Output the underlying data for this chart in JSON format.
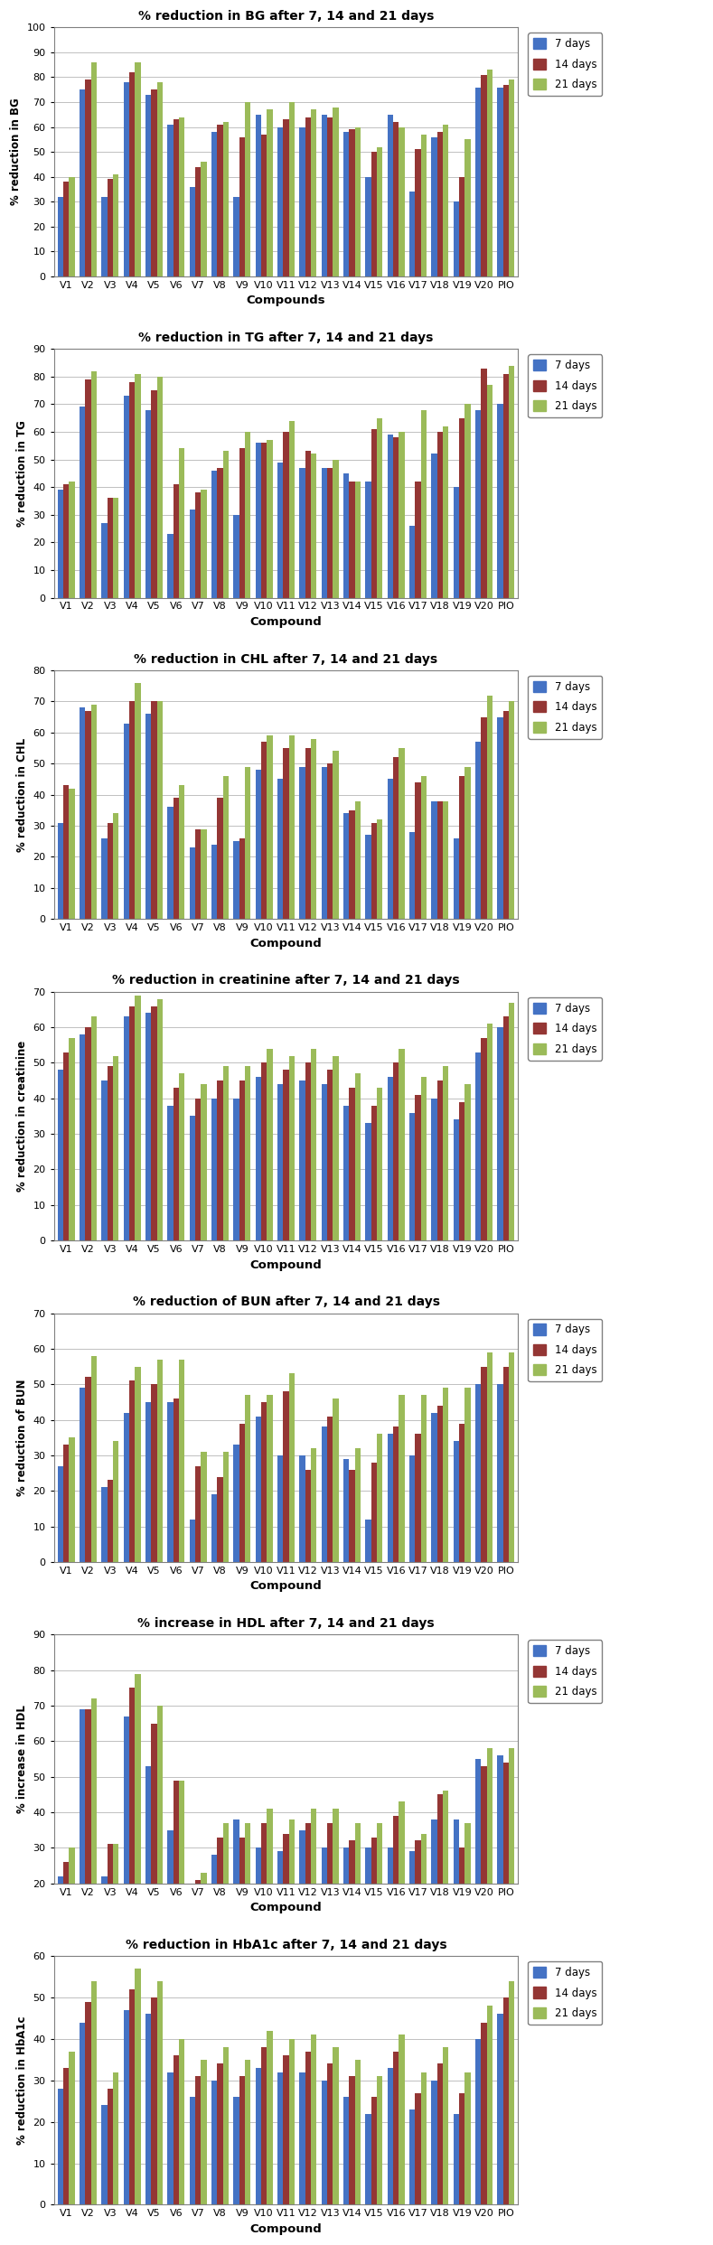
{
  "charts": [
    {
      "title": "% reduction in BG after 7, 14 and 21 days",
      "ylabel": "% reduction in BG",
      "xlabel": "Compounds",
      "ylim": [
        0,
        100
      ],
      "yticks": [
        0,
        10,
        20,
        30,
        40,
        50,
        60,
        70,
        80,
        90,
        100
      ],
      "series_7": [
        32,
        75,
        32,
        78,
        73,
        61,
        36,
        58,
        32,
        65,
        60,
        60,
        65,
        58,
        40,
        65,
        34,
        56,
        30,
        76,
        76
      ],
      "series_14": [
        38,
        79,
        39,
        82,
        75,
        63,
        44,
        61,
        56,
        57,
        63,
        64,
        64,
        59,
        50,
        62,
        51,
        58,
        40,
        81,
        77
      ],
      "series_21": [
        40,
        86,
        41,
        86,
        78,
        64,
        46,
        62,
        70,
        67,
        70,
        67,
        68,
        60,
        52,
        60,
        57,
        61,
        55,
        83,
        79
      ]
    },
    {
      "title": "% reduction in TG after 7, 14 and 21 days",
      "ylabel": "% reduction in TG",
      "xlabel": "Compound",
      "ylim": [
        0,
        90
      ],
      "yticks": [
        0,
        10,
        20,
        30,
        40,
        50,
        60,
        70,
        80,
        90
      ],
      "series_7": [
        39,
        69,
        27,
        73,
        68,
        23,
        32,
        46,
        30,
        56,
        49,
        47,
        47,
        45,
        42,
        59,
        26,
        52,
        40,
        68,
        70
      ],
      "series_14": [
        41,
        79,
        36,
        78,
        75,
        41,
        38,
        47,
        54,
        56,
        60,
        53,
        47,
        42,
        61,
        58,
        42,
        60,
        65,
        83,
        81
      ],
      "series_21": [
        42,
        82,
        36,
        81,
        80,
        54,
        39,
        53,
        60,
        57,
        64,
        52,
        50,
        42,
        65,
        60,
        68,
        62,
        70,
        77,
        84
      ]
    },
    {
      "title": "% reduction in CHL after 7, 14 and 21 days",
      "ylabel": "% reduction in CHL",
      "xlabel": "Compound",
      "ylim": [
        0,
        80
      ],
      "yticks": [
        0,
        10,
        20,
        30,
        40,
        50,
        60,
        70,
        80
      ],
      "series_7": [
        31,
        68,
        26,
        63,
        66,
        36,
        23,
        24,
        25,
        48,
        45,
        49,
        49,
        34,
        27,
        45,
        28,
        38,
        26,
        57,
        65
      ],
      "series_14": [
        43,
        67,
        31,
        70,
        70,
        39,
        29,
        39,
        26,
        57,
        55,
        55,
        50,
        35,
        31,
        52,
        44,
        38,
        46,
        65,
        67
      ],
      "series_21": [
        42,
        69,
        34,
        76,
        70,
        43,
        29,
        46,
        49,
        59,
        59,
        58,
        54,
        38,
        32,
        55,
        46,
        38,
        49,
        72,
        70
      ]
    },
    {
      "title": "% reduction in creatinine after 7, 14 and 21 days",
      "ylabel": "% reduction in creatinine",
      "xlabel": "Compound",
      "ylim": [
        0,
        70
      ],
      "yticks": [
        0,
        10,
        20,
        30,
        40,
        50,
        60,
        70
      ],
      "series_7": [
        48,
        58,
        45,
        63,
        64,
        38,
        35,
        40,
        40,
        46,
        44,
        45,
        44,
        38,
        33,
        46,
        36,
        40,
        34,
        53,
        60
      ],
      "series_14": [
        53,
        60,
        49,
        66,
        66,
        43,
        40,
        45,
        45,
        50,
        48,
        50,
        48,
        43,
        38,
        50,
        41,
        45,
        39,
        57,
        63
      ],
      "series_21": [
        57,
        63,
        52,
        69,
        68,
        47,
        44,
        49,
        49,
        54,
        52,
        54,
        52,
        47,
        43,
        54,
        46,
        49,
        44,
        61,
        67
      ]
    },
    {
      "title": "% reduction of BUN after 7, 14 and 21 days",
      "ylabel": "% reduction of BUN",
      "xlabel": "Compound",
      "ylim": [
        0,
        70
      ],
      "yticks": [
        0,
        10,
        20,
        30,
        40,
        50,
        60,
        70
      ],
      "series_7": [
        27,
        49,
        21,
        42,
        45,
        45,
        12,
        19,
        33,
        41,
        30,
        30,
        38,
        29,
        12,
        36,
        30,
        42,
        34,
        50,
        50
      ],
      "series_14": [
        33,
        52,
        23,
        51,
        50,
        46,
        27,
        24,
        39,
        45,
        48,
        26,
        41,
        26,
        28,
        38,
        36,
        44,
        39,
        55,
        55
      ],
      "series_21": [
        35,
        58,
        34,
        55,
        57,
        57,
        31,
        31,
        47,
        47,
        53,
        32,
        46,
        32,
        36,
        47,
        47,
        49,
        49,
        59,
        59
      ]
    },
    {
      "title": "% increase in HDL after 7, 14 and 21 days",
      "ylabel": "% increase in HDL",
      "xlabel": "Compound",
      "ylim": [
        20,
        90
      ],
      "yticks": [
        20,
        30,
        40,
        50,
        60,
        70,
        80,
        90
      ],
      "series_7": [
        22,
        69,
        22,
        67,
        53,
        35,
        18,
        28,
        38,
        30,
        29,
        35,
        30,
        30,
        30,
        30,
        29,
        38,
        38,
        55,
        56
      ],
      "series_14": [
        26,
        69,
        31,
        75,
        65,
        49,
        21,
        33,
        33,
        37,
        34,
        37,
        37,
        32,
        33,
        39,
        32,
        45,
        30,
        53,
        54
      ],
      "series_21": [
        30,
        72,
        31,
        79,
        70,
        49,
        23,
        37,
        37,
        41,
        38,
        41,
        41,
        37,
        37,
        43,
        34,
        46,
        37,
        58,
        58
      ]
    },
    {
      "title": "% reduction in HbA1c after 7, 14 and 21 days",
      "ylabel": "% reduction in HbA1c",
      "xlabel": "Compound",
      "ylim": [
        0,
        60
      ],
      "yticks": [
        0,
        10,
        20,
        30,
        40,
        50,
        60
      ],
      "series_7": [
        28,
        44,
        24,
        47,
        46,
        32,
        26,
        30,
        26,
        33,
        32,
        32,
        30,
        26,
        22,
        33,
        23,
        30,
        22,
        40,
        46
      ],
      "series_14": [
        33,
        49,
        28,
        52,
        50,
        36,
        31,
        34,
        31,
        38,
        36,
        37,
        34,
        31,
        26,
        37,
        27,
        34,
        27,
        44,
        50
      ],
      "series_21": [
        37,
        54,
        32,
        57,
        54,
        40,
        35,
        38,
        35,
        42,
        40,
        41,
        38,
        35,
        31,
        41,
        32,
        38,
        32,
        48,
        54
      ]
    }
  ],
  "categories": [
    "V1",
    "V2",
    "V3",
    "V4",
    "V5",
    "V6",
    "V7",
    "V8",
    "V9",
    "V10",
    "V11",
    "V12",
    "V13",
    "V14",
    "V15",
    "V16",
    "V17",
    "V18",
    "V19",
    "V20",
    "PIO"
  ],
  "color_7": "#4472C4",
  "color_14": "#943634",
  "color_21": "#9BBB59",
  "legend_labels": [
    "7 days",
    "14 days",
    "21 days"
  ],
  "bar_width": 0.26,
  "bg_color": "#FFFFFF",
  "grid_color": "#C0C0C0",
  "panel_border_color": "#808080"
}
